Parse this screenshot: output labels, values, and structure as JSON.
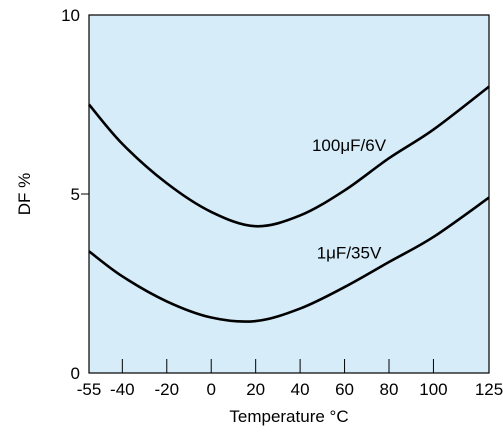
{
  "chart_data": {
    "type": "line",
    "title": "",
    "xlabel": "Temperature °C",
    "ylabel": "DF %",
    "xlim": [
      -55,
      125
    ],
    "ylim": [
      0,
      10
    ],
    "xticks": [
      -55,
      -40,
      -20,
      0,
      20,
      40,
      60,
      80,
      100,
      125
    ],
    "xtick_labels": [
      "-55",
      "-40",
      "-20",
      "0",
      "20",
      "40",
      "60",
      "80",
      "100",
      "125"
    ],
    "yticks": [
      0,
      5,
      10
    ],
    "ytick_labels": [
      "0",
      "5",
      "10"
    ],
    "grid": false,
    "plot_background": "#d6ecf9",
    "line_color": "#000000",
    "series": [
      {
        "name": "100μF/6V",
        "x": [
          -55,
          -40,
          -20,
          0,
          20,
          40,
          60,
          80,
          100,
          125
        ],
        "y": [
          7.5,
          6.4,
          5.3,
          4.5,
          4.1,
          4.4,
          5.1,
          6.0,
          6.8,
          8.0
        ]
      },
      {
        "name": "1μF/35V",
        "x": [
          -55,
          -40,
          -20,
          0,
          20,
          40,
          60,
          80,
          100,
          125
        ],
        "y": [
          3.4,
          2.7,
          2.0,
          1.55,
          1.45,
          1.8,
          2.4,
          3.1,
          3.8,
          4.9
        ]
      }
    ]
  }
}
